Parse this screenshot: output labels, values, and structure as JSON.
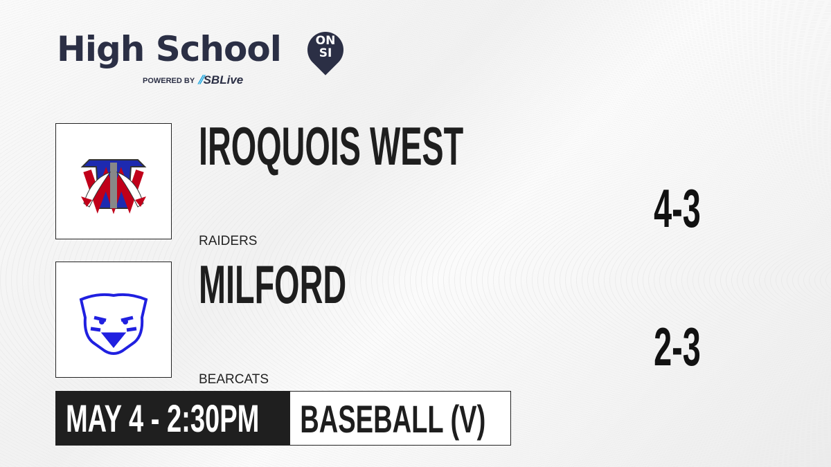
{
  "brand": {
    "title": "High School",
    "badge_top": "ON",
    "badge_bottom": "SI",
    "powered_by": "POWERED BY",
    "partner": "SBLive",
    "partner_accent": "#1fa8e0",
    "color": "#2b2f45"
  },
  "teams": [
    {
      "name": "IROQUOIS WEST",
      "mascot": "RAIDERS",
      "score": "4-3",
      "logo": "iroquois-west-raiders-logo"
    },
    {
      "name": "MILFORD",
      "mascot": "BEARCATS",
      "score": "2-3",
      "logo": "milford-bearcats-logo"
    }
  ],
  "game": {
    "datetime": "MAY 4 - 2:30PM",
    "sport": "BASEBALL (V)"
  }
}
